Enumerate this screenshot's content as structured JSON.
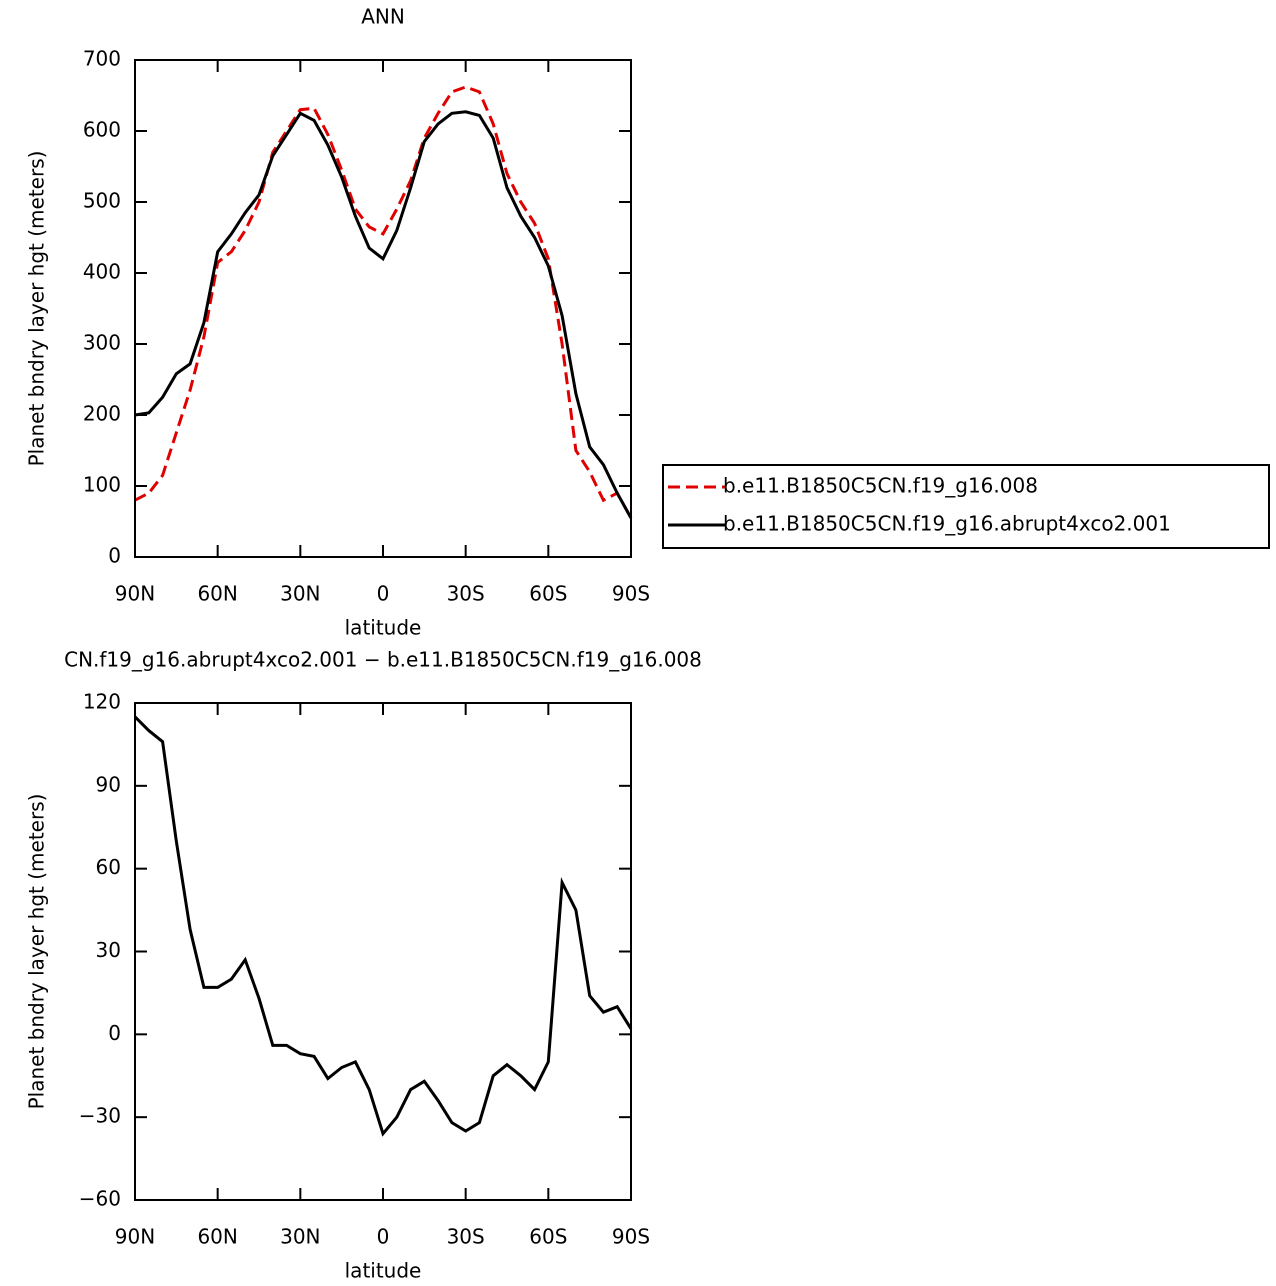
{
  "chart_data": [
    {
      "type": "line",
      "title": "ANN",
      "xlabel": "latitude",
      "ylabel": "Planet bndry layer hgt (meters)",
      "x": [
        90,
        85,
        80,
        75,
        70,
        65,
        60,
        55,
        50,
        45,
        40,
        35,
        30,
        25,
        20,
        15,
        10,
        5,
        0,
        -5,
        -10,
        -15,
        -20,
        -25,
        -30,
        -35,
        -40,
        -45,
        -50,
        -55,
        -60,
        -65,
        -70,
        -75,
        -80,
        -85,
        -90
      ],
      "series": [
        {
          "name": "b.e11.B1850C5CN.f19_g16.008",
          "color": "#e00000",
          "line_style": "dashed",
          "values": [
            80,
            90,
            115,
            175,
            235,
            310,
            415,
            430,
            460,
            500,
            570,
            600,
            630,
            632,
            595,
            545,
            490,
            465,
            455,
            490,
            530,
            590,
            625,
            655,
            662,
            655,
            610,
            540,
            500,
            470,
            420,
            300,
            150,
            120,
            80,
            90,
            55
          ]
        },
        {
          "name": "b.e11.B1850C5CN.f19_g16.abrupt4xco2.001",
          "color": "#000000",
          "line_style": "solid",
          "values": [
            200,
            203,
            225,
            258,
            272,
            330,
            430,
            455,
            485,
            510,
            565,
            595,
            625,
            615,
            580,
            535,
            480,
            435,
            420,
            460,
            520,
            585,
            610,
            625,
            627,
            622,
            590,
            520,
            480,
            450,
            410,
            340,
            230,
            155,
            130,
            90,
            55
          ]
        }
      ],
      "xlim": [
        90,
        -90
      ],
      "xticks": [
        {
          "value": 90,
          "label": "90N"
        },
        {
          "value": 60,
          "label": "60N"
        },
        {
          "value": 30,
          "label": "30N"
        },
        0,
        {
          "value": -30,
          "label": "30S"
        },
        {
          "value": -60,
          "label": "60S"
        },
        {
          "value": -90,
          "label": "90S"
        }
      ],
      "ylim": [
        0,
        700
      ],
      "yticks": [
        0,
        100,
        200,
        300,
        400,
        500,
        600,
        700
      ],
      "legend": "right"
    },
    {
      "type": "line",
      "title": "CN.f19_g16.abrupt4xco2.001 − b.e11.B1850C5CN.f19_g16.008",
      "xlabel": "latitude",
      "ylabel": "Planet bndry layer hgt (meters)",
      "x": [
        90,
        85,
        80,
        75,
        70,
        65,
        60,
        55,
        50,
        45,
        40,
        35,
        30,
        25,
        20,
        15,
        10,
        5,
        0,
        -5,
        -10,
        -15,
        -20,
        -25,
        -30,
        -35,
        -40,
        -45,
        -50,
        -55,
        -60,
        -65,
        -70,
        -75,
        -80,
        -85,
        -90
      ],
      "series": [
        {
          "color": "#000000",
          "line_style": "solid",
          "values": [
            115,
            110,
            106,
            70,
            38,
            17,
            17,
            20,
            27,
            13,
            -4,
            -4,
            -7,
            -8,
            -16,
            -12,
            -10,
            -20,
            -36,
            -30,
            -20,
            -17,
            -24,
            -32,
            -35,
            -32,
            -15,
            -11,
            -15,
            -20,
            -10,
            55,
            45,
            14,
            8,
            10,
            2
          ]
        }
      ],
      "xlim": [
        90,
        -90
      ],
      "xticks": [
        {
          "value": 90,
          "label": "90N"
        },
        {
          "value": 60,
          "label": "60N"
        },
        {
          "value": 30,
          "label": "30N"
        },
        0,
        {
          "value": -30,
          "label": "30S"
        },
        {
          "value": -60,
          "label": "60S"
        },
        {
          "value": -90,
          "label": "90S"
        }
      ],
      "ylim": [
        -60,
        120
      ],
      "yticks": [
        {
          "value": -60,
          "label": "−60"
        },
        {
          "value": -30,
          "label": "−30"
        },
        0,
        30,
        60,
        90,
        120
      ]
    }
  ]
}
